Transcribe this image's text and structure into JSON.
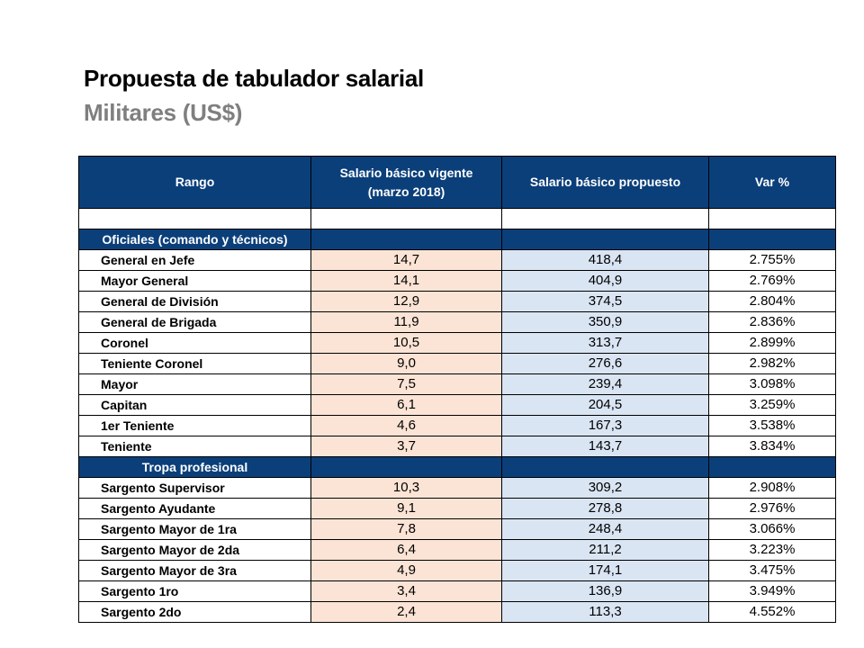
{
  "title": "Propuesta de tabulador salarial",
  "subtitle": "Militares (US$)",
  "table": {
    "headers": {
      "rango": "Rango",
      "vigente_line1": "Salario básico vigente",
      "vigente_line2": "(marzo 2018)",
      "propuesto": "Salario básico propuesto",
      "var": "Var %"
    },
    "sections": [
      {
        "label": "Oficiales (comando y técnicos)",
        "rows": [
          {
            "rango": "General en Jefe",
            "vigente": "14,7",
            "propuesto": "418,4",
            "var": "2.755%"
          },
          {
            "rango": "Mayor General",
            "vigente": "14,1",
            "propuesto": "404,9",
            "var": "2.769%"
          },
          {
            "rango": "General de División",
            "vigente": "12,9",
            "propuesto": "374,5",
            "var": "2.804%"
          },
          {
            "rango": "General de Brigada",
            "vigente": "11,9",
            "propuesto": "350,9",
            "var": "2.836%"
          },
          {
            "rango": "Coronel",
            "vigente": "10,5",
            "propuesto": "313,7",
            "var": "2.899%"
          },
          {
            "rango": "Teniente Coronel",
            "vigente": "9,0",
            "propuesto": "276,6",
            "var": "2.982%"
          },
          {
            "rango": "Mayor",
            "vigente": "7,5",
            "propuesto": "239,4",
            "var": "3.098%"
          },
          {
            "rango": "Capitan",
            "vigente": "6,1",
            "propuesto": "204,5",
            "var": "3.259%"
          },
          {
            "rango": "1er Teniente",
            "vigente": "4,6",
            "propuesto": "167,3",
            "var": "3.538%"
          },
          {
            "rango": "Teniente",
            "vigente": "3,7",
            "propuesto": "143,7",
            "var": "3.834%"
          }
        ]
      },
      {
        "label": "Tropa profesional",
        "rows": [
          {
            "rango": "Sargento Supervisor",
            "vigente": "10,3",
            "propuesto": "309,2",
            "var": "2.908%"
          },
          {
            "rango": "Sargento Ayudante",
            "vigente": "9,1",
            "propuesto": "278,8",
            "var": "2.976%"
          },
          {
            "rango": "Sargento Mayor de 1ra",
            "vigente": "7,8",
            "propuesto": "248,4",
            "var": "3.066%"
          },
          {
            "rango": "Sargento Mayor de 2da",
            "vigente": "6,4",
            "propuesto": "211,2",
            "var": "3.223%"
          },
          {
            "rango": "Sargento Mayor de 3ra",
            "vigente": "4,9",
            "propuesto": "174,1",
            "var": "3.475%"
          },
          {
            "rango": "Sargento 1ro",
            "vigente": "3,4",
            "propuesto": "136,9",
            "var": "3.949%"
          },
          {
            "rango": "Sargento 2do",
            "vigente": "2,4",
            "propuesto": "113,3",
            "var": "4.552%"
          }
        ]
      }
    ]
  },
  "colors": {
    "header_bg": "#0b3f7a",
    "vigente_bg": "#fbe4d5",
    "propuesto_bg": "#dae5f3",
    "subtitle": "#7f7f7f"
  }
}
